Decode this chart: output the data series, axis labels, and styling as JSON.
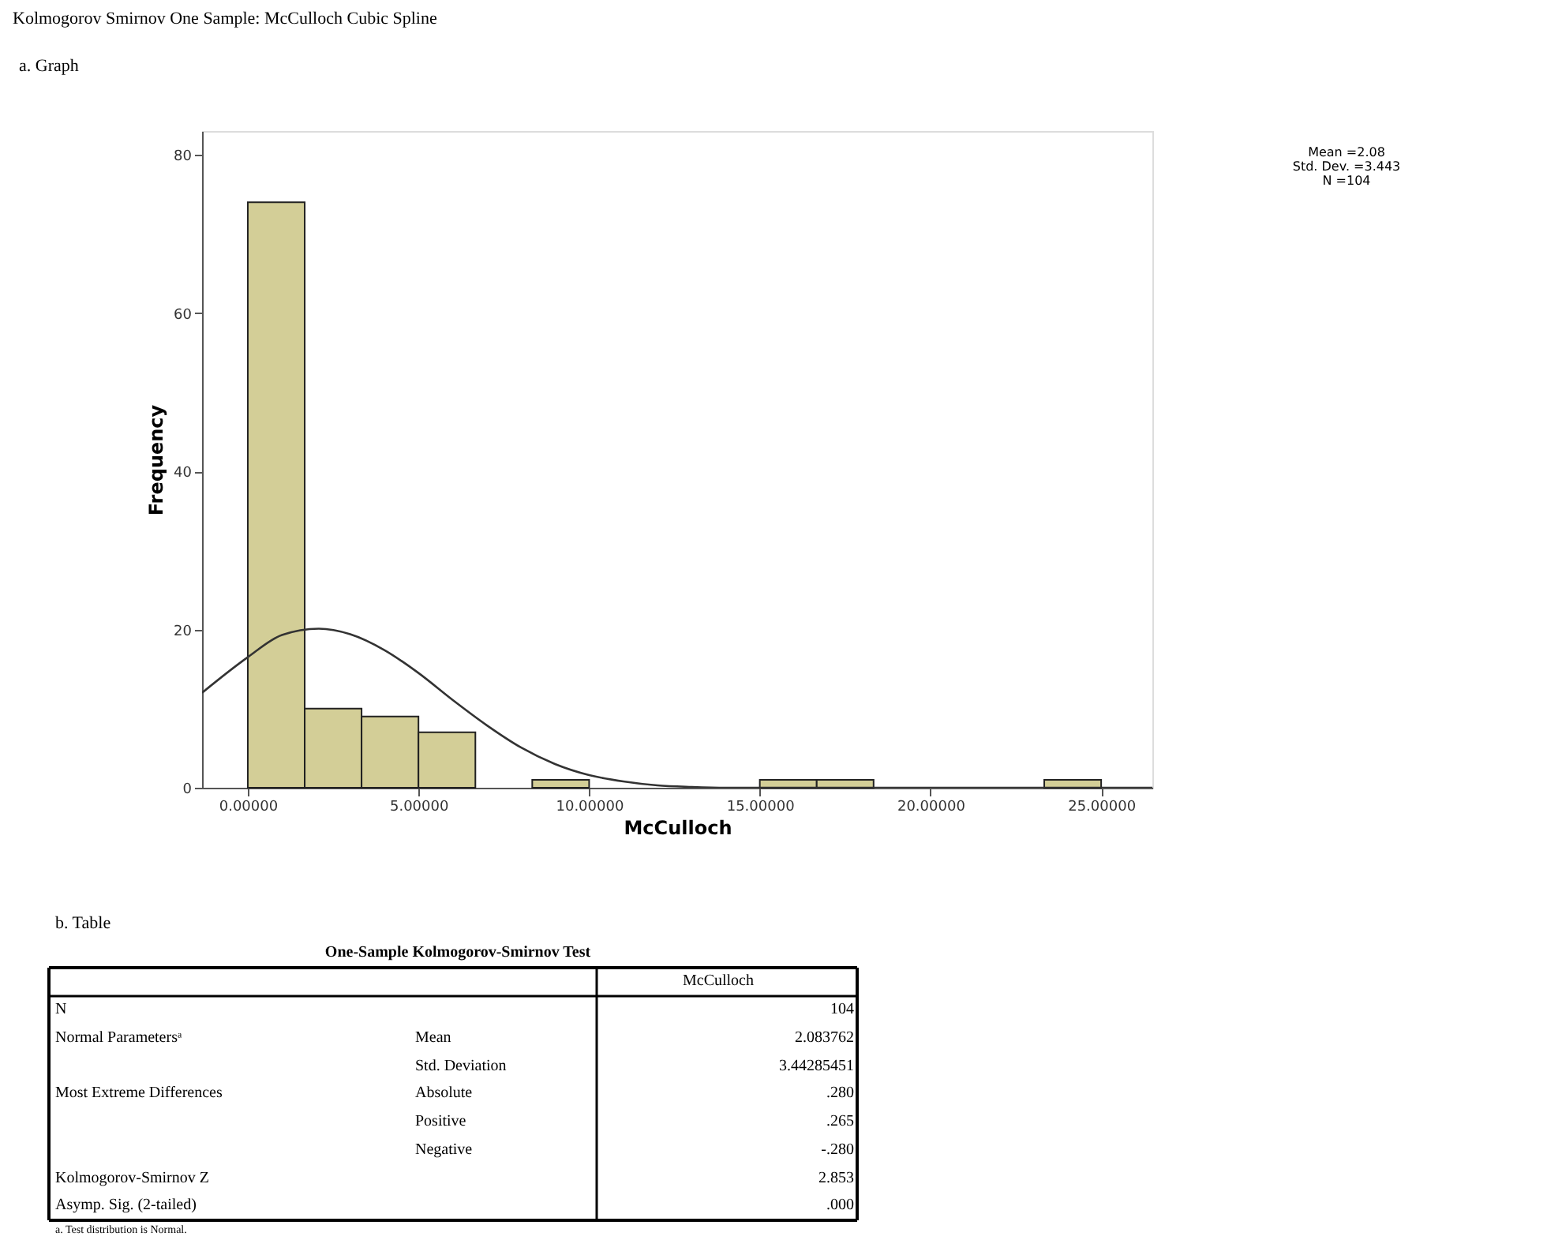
{
  "chart_data": {
    "type": "histogram",
    "xlabel": "McCulloch",
    "ylabel": "Frequency",
    "bins": [
      0,
      1.667,
      3.333,
      5,
      6.667,
      8.333,
      10,
      11.667,
      13.333,
      15,
      16.667,
      18.333,
      20,
      21.667,
      23.333,
      25
    ],
    "values": [
      74,
      10,
      9,
      7,
      0,
      1,
      0,
      0,
      0,
      1,
      1,
      0,
      0,
      0,
      1
    ],
    "color": "#d3ce97",
    "series": [
      {
        "type": "line",
        "color": "#333333",
        "x": [
          -1.34,
          0,
          1,
          2.08,
          3,
          4,
          5,
          6,
          7,
          8,
          9,
          10,
          11,
          12,
          13,
          14,
          15,
          26.5
        ],
        "values": [
          12,
          16.5,
          19.3,
          20.1,
          19.4,
          17.4,
          14.5,
          11.1,
          7.9,
          5.1,
          3.0,
          1.6,
          0.8,
          0.3,
          0.1,
          0,
          0,
          0
        ]
      }
    ],
    "xlim": [
      -1.34,
      26.5
    ],
    "ylim": [
      0,
      83
    ],
    "xticks": [
      {
        "value": 0,
        "label": "0.00000"
      },
      {
        "value": 5,
        "label": "5.00000"
      },
      {
        "value": 10,
        "label": "10.00000"
      },
      {
        "value": 15,
        "label": "15.00000"
      },
      {
        "value": 20,
        "label": "20.00000"
      },
      {
        "value": 25,
        "label": "25.00000"
      }
    ],
    "yticks": [
      0,
      20,
      40,
      60,
      80
    ],
    "grid": false,
    "annotations": [
      "Kolmogorov Smirnov One Sample: McCulloch Cubic Spline",
      "a. Graph",
      "Mean =2.08",
      "Std. Dev. =3.443",
      "N =104",
      "b. Table",
      "One-Sample Kolmogorov-Smirnov Test",
      "McCulloch",
      "N",
      "104",
      "Normal Parametersᵃ",
      "Mean",
      "2.083762",
      "Std. Deviation",
      "3.44285451",
      "Most Extreme Differences",
      "Absolute",
      ".280",
      "Positive",
      ".265",
      "Negative",
      "-.280",
      "Kolmogorov-Smirnov Z",
      "2.853",
      "Asymp. Sig. (2-tailed)",
      ".000",
      "a. Test distribution is Normal."
    ]
  }
}
